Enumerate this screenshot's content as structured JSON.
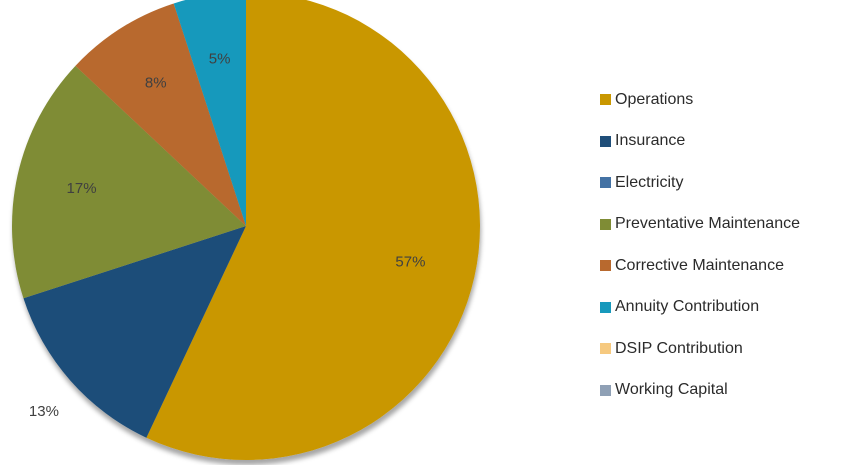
{
  "chart_data": {
    "type": "pie",
    "title": "",
    "legend_position": "right",
    "slices": [
      {
        "name": "Operations",
        "value": 57,
        "label": "57%",
        "color": "#C99700"
      },
      {
        "name": "Insurance",
        "value": 13,
        "label": "13%",
        "color": "#1F4E79"
      },
      {
        "name": "Electricity",
        "value": 0,
        "label": "",
        "color": "#4472A4"
      },
      {
        "name": "Preventative Maintenance",
        "value": 17,
        "label": "17%",
        "color": "#7F8C35"
      },
      {
        "name": "Corrective Maintenance",
        "value": 8,
        "label": "8%",
        "color": "#B8692E"
      },
      {
        "name": "Annuity Contribution",
        "value": 5,
        "label": "5%",
        "color": "#1799BC"
      },
      {
        "name": "DSIP Contribution",
        "value": 0,
        "label": "",
        "color": "#F6C97F"
      },
      {
        "name": "Working Capital",
        "value": 0,
        "label": "",
        "color": "#8FA0B5"
      }
    ]
  }
}
